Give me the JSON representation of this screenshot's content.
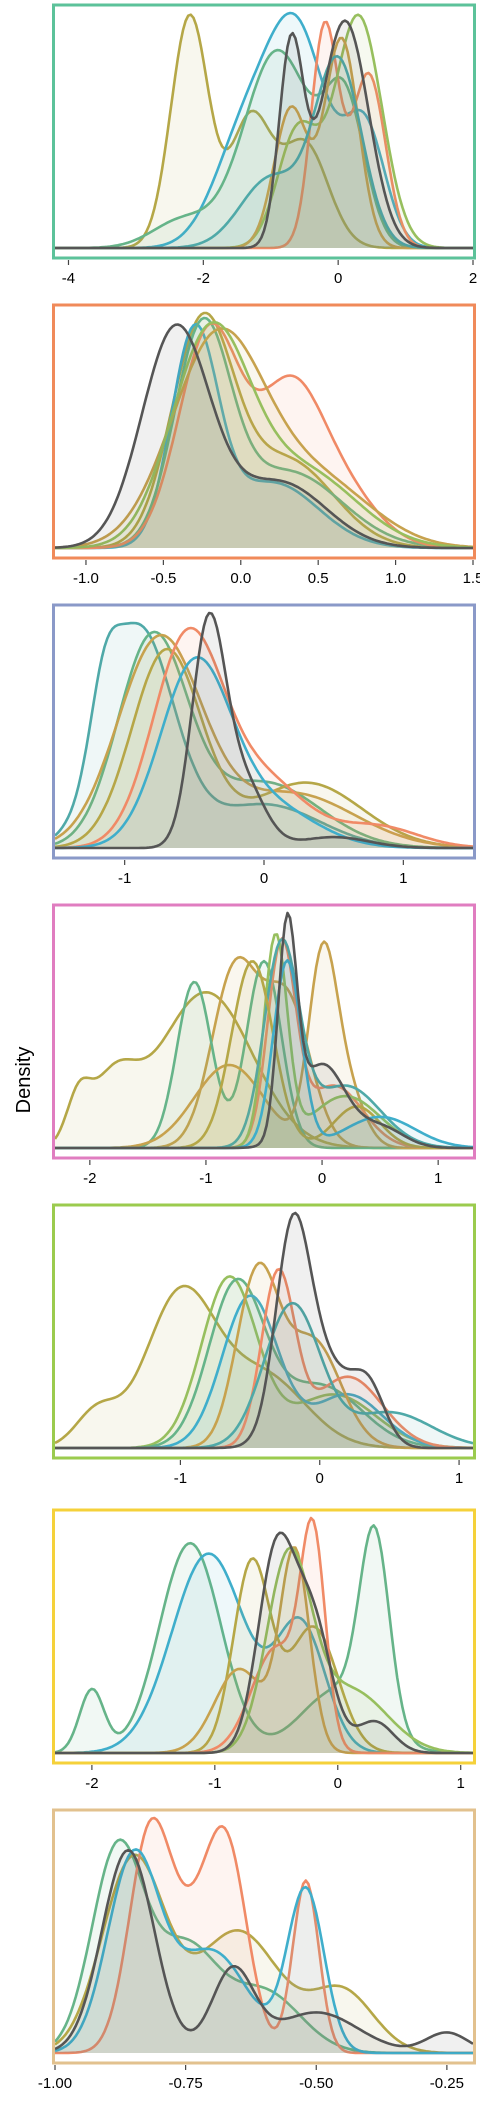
{
  "ylabel": "Density",
  "colors": {
    "dark": "#555555",
    "olive": "#B5A747",
    "green": "#66B489",
    "blue": "#3FAECB",
    "orange": "#F08A66",
    "gold": "#C7A24E",
    "lime": "#97BF5E",
    "teal": "#4FA9A8"
  },
  "chart_data": [
    {
      "type": "area",
      "frame_color": "#5CC29A",
      "xlim": [
        -4.2,
        2.0
      ],
      "xticks": [
        {
          "v": -4,
          "label": "-4"
        },
        {
          "v": -2,
          "label": "-2"
        },
        {
          "v": 0,
          "label": "0"
        },
        {
          "v": 2,
          "label": "2"
        }
      ],
      "series": [
        {
          "color": "olive",
          "comps": [
            [
              -2.2,
              0.28,
              1.0
            ],
            [
              -1.3,
              0.3,
              0.55
            ],
            [
              -0.5,
              0.35,
              0.45
            ]
          ]
        },
        {
          "color": "blue",
          "comps": [
            [
              -0.6,
              0.45,
              0.9
            ],
            [
              -1.4,
              0.45,
              0.45
            ],
            [
              0.4,
              0.3,
              0.5
            ]
          ]
        },
        {
          "color": "green",
          "comps": [
            [
              -0.9,
              0.5,
              0.85
            ],
            [
              0.1,
              0.3,
              0.6
            ],
            [
              -2.3,
              0.45,
              0.12
            ]
          ]
        },
        {
          "color": "orange",
          "comps": [
            [
              -0.2,
              0.2,
              0.95
            ],
            [
              0.45,
              0.25,
              0.75
            ]
          ]
        },
        {
          "color": "lime",
          "comps": [
            [
              0.3,
              0.35,
              1.0
            ],
            [
              -0.6,
              0.3,
              0.5
            ]
          ]
        },
        {
          "color": "gold",
          "comps": [
            [
              0.05,
              0.25,
              0.9
            ],
            [
              -0.7,
              0.25,
              0.6
            ]
          ]
        },
        {
          "color": "teal",
          "comps": [
            [
              0.0,
              0.35,
              0.8
            ],
            [
              -1.0,
              0.45,
              0.3
            ]
          ]
        },
        {
          "color": "dark",
          "comps": [
            [
              -0.7,
              0.18,
              0.85
            ],
            [
              0.1,
              0.35,
              0.98
            ]
          ]
        }
      ]
    },
    {
      "type": "area",
      "frame_color": "#F08A5A",
      "xlim": [
        -1.2,
        1.5
      ],
      "xticks": [
        {
          "v": -1.0,
          "label": "-1.0"
        },
        {
          "v": -0.5,
          "label": "-0.5"
        },
        {
          "v": 0.0,
          "label": "0.0"
        },
        {
          "v": 0.5,
          "label": "0.5"
        },
        {
          "v": 1.0,
          "label": "1.0"
        },
        {
          "v": 1.5,
          "label": "1.5"
        }
      ],
      "series": [
        {
          "color": "olive",
          "comps": [
            [
              -0.25,
              0.2,
              1.0
            ],
            [
              0.3,
              0.3,
              0.4
            ]
          ]
        },
        {
          "color": "blue",
          "comps": [
            [
              -0.3,
              0.15,
              0.95
            ],
            [
              0.2,
              0.3,
              0.3
            ]
          ]
        },
        {
          "color": "green",
          "comps": [
            [
              -0.25,
              0.18,
              0.95
            ],
            [
              0.3,
              0.35,
              0.35
            ]
          ]
        },
        {
          "color": "orange",
          "comps": [
            [
              -0.2,
              0.2,
              1.0
            ],
            [
              0.3,
              0.2,
              0.6
            ],
            [
              0.6,
              0.25,
              0.3
            ]
          ]
        },
        {
          "color": "gold",
          "comps": [
            [
              -0.15,
              0.3,
              0.95
            ],
            [
              0.5,
              0.35,
              0.3
            ]
          ]
        },
        {
          "color": "lime",
          "comps": [
            [
              -0.2,
              0.25,
              0.95
            ],
            [
              0.4,
              0.35,
              0.35
            ]
          ]
        },
        {
          "color": "dark",
          "comps": [
            [
              -0.42,
              0.22,
              1.0
            ],
            [
              0.25,
              0.3,
              0.3
            ]
          ]
        }
      ]
    },
    {
      "type": "area",
      "frame_color": "#8A99C8",
      "xlim": [
        -1.5,
        1.5
      ],
      "xticks": [
        {
          "v": -1,
          "label": "-1"
        },
        {
          "v": 0,
          "label": "0"
        },
        {
          "v": 1,
          "label": "1"
        }
      ],
      "series": [
        {
          "color": "teal",
          "comps": [
            [
              -0.9,
              0.25,
              1.0
            ],
            [
              -1.15,
              0.1,
              0.3
            ],
            [
              0.0,
              0.4,
              0.2
            ]
          ]
        },
        {
          "color": "green",
          "comps": [
            [
              -0.8,
              0.25,
              0.95
            ],
            [
              0.0,
              0.4,
              0.3
            ]
          ]
        },
        {
          "color": "olive",
          "comps": [
            [
              -0.7,
              0.25,
              0.9
            ],
            [
              0.3,
              0.4,
              0.3
            ]
          ]
        },
        {
          "color": "gold",
          "comps": [
            [
              -0.75,
              0.3,
              0.95
            ],
            [
              0.2,
              0.45,
              0.25
            ]
          ]
        },
        {
          "color": "orange",
          "comps": [
            [
              -0.55,
              0.25,
              0.95
            ],
            [
              0.0,
              0.3,
              0.3
            ],
            [
              0.8,
              0.3,
              0.1
            ]
          ]
        },
        {
          "color": "blue",
          "comps": [
            [
              -0.5,
              0.25,
              0.8
            ],
            [
              0.0,
              0.35,
              0.2
            ]
          ]
        },
        {
          "color": "dark",
          "comps": [
            [
              -0.4,
              0.12,
              1.0
            ],
            [
              -0.15,
              0.15,
              0.3
            ],
            [
              0.5,
              0.25,
              0.05
            ]
          ]
        }
      ]
    },
    {
      "type": "area",
      "frame_color": "#E07DC0",
      "xlim": [
        -2.3,
        1.3
      ],
      "xticks": [
        {
          "v": -2,
          "label": "-2"
        },
        {
          "v": -1,
          "label": "-1"
        },
        {
          "v": 0,
          "label": "0"
        },
        {
          "v": 1,
          "label": "1"
        }
      ],
      "series": [
        {
          "color": "olive",
          "comps": [
            [
              -1.0,
              0.4,
              0.75
            ],
            [
              -1.8,
              0.2,
              0.3
            ],
            [
              -2.1,
              0.1,
              0.2
            ]
          ]
        },
        {
          "color": "gold",
          "comps": [
            [
              -0.75,
              0.2,
              0.85
            ],
            [
              -0.3,
              0.2,
              0.7
            ]
          ]
        },
        {
          "color": "green",
          "comps": [
            [
              -0.5,
              0.15,
              0.9
            ],
            [
              -1.1,
              0.15,
              0.8
            ]
          ]
        },
        {
          "color": "gold",
          "comps": [
            [
              0.0,
              0.12,
              0.85
            ],
            [
              0.2,
              0.15,
              0.3
            ],
            [
              -0.8,
              0.3,
              0.4
            ]
          ]
        },
        {
          "color": "orange",
          "comps": [
            [
              -0.35,
              0.12,
              0.95
            ],
            [
              0.1,
              0.25,
              0.3
            ]
          ]
        },
        {
          "color": "lime",
          "comps": [
            [
              -0.4,
              0.1,
              1.0
            ],
            [
              0.2,
              0.3,
              0.25
            ]
          ]
        },
        {
          "color": "teal",
          "comps": [
            [
              -0.35,
              0.15,
              0.95
            ],
            [
              0.2,
              0.3,
              0.3
            ]
          ]
        },
        {
          "color": "olive",
          "comps": [
            [
              -0.6,
              0.18,
              0.9
            ],
            [
              0.3,
              0.2,
              0.2
            ]
          ]
        },
        {
          "color": "blue",
          "comps": [
            [
              -0.3,
              0.12,
              0.9
            ],
            [
              0.5,
              0.3,
              0.15
            ]
          ]
        },
        {
          "color": "dark",
          "comps": [
            [
              -0.3,
              0.08,
              1.0
            ],
            [
              0.0,
              0.2,
              0.4
            ],
            [
              0.5,
              0.2,
              0.1
            ]
          ]
        }
      ]
    },
    {
      "type": "area",
      "frame_color": "#9BCB4E",
      "xlim": [
        -1.9,
        1.1
      ],
      "xticks": [
        {
          "v": -1,
          "label": "-1"
        },
        {
          "v": 0,
          "label": "0"
        },
        {
          "v": 1,
          "label": "1"
        }
      ],
      "series": [
        {
          "color": "olive",
          "comps": [
            [
              -1.0,
              0.25,
              0.85
            ],
            [
              -1.6,
              0.15,
              0.2
            ],
            [
              -0.4,
              0.3,
              0.4
            ]
          ]
        },
        {
          "color": "lime",
          "comps": [
            [
              -0.65,
              0.2,
              0.95
            ],
            [
              0.1,
              0.3,
              0.3
            ]
          ]
        },
        {
          "color": "green",
          "comps": [
            [
              -0.6,
              0.2,
              0.9
            ],
            [
              0.0,
              0.3,
              0.35
            ]
          ]
        },
        {
          "color": "blue",
          "comps": [
            [
              -0.5,
              0.2,
              0.85
            ],
            [
              0.2,
              0.25,
              0.3
            ]
          ]
        },
        {
          "color": "gold",
          "comps": [
            [
              -0.45,
              0.15,
              0.95
            ],
            [
              -0.05,
              0.2,
              0.6
            ]
          ]
        },
        {
          "color": "orange",
          "comps": [
            [
              -0.3,
              0.12,
              0.95
            ],
            [
              0.2,
              0.25,
              0.4
            ]
          ]
        },
        {
          "color": "teal",
          "comps": [
            [
              -0.2,
              0.2,
              0.8
            ],
            [
              0.5,
              0.3,
              0.2
            ]
          ]
        },
        {
          "color": "dark",
          "comps": [
            [
              -0.2,
              0.12,
              1.0
            ],
            [
              0.0,
              0.2,
              0.5
            ],
            [
              0.35,
              0.12,
              0.3
            ]
          ]
        }
      ]
    },
    {
      "type": "area",
      "frame_color": "#F5D13A",
      "xlim": [
        -2.3,
        1.1
      ],
      "xticks": [
        {
          "v": -2,
          "label": "-2"
        },
        {
          "v": -1,
          "label": "-1"
        },
        {
          "v": 0,
          "label": "0"
        },
        {
          "v": 1,
          "label": "1"
        }
      ],
      "series": [
        {
          "color": "green",
          "comps": [
            [
              -1.2,
              0.25,
              1.0
            ],
            [
              -2.0,
              0.1,
              0.3
            ],
            [
              0.3,
              0.12,
              0.9
            ],
            [
              0.0,
              0.3,
              0.3
            ]
          ]
        },
        {
          "color": "blue",
          "comps": [
            [
              -1.05,
              0.3,
              0.95
            ],
            [
              -0.3,
              0.2,
              0.6
            ]
          ]
        },
        {
          "color": "olive",
          "comps": [
            [
              -0.7,
              0.15,
              0.9
            ],
            [
              -0.2,
              0.2,
              0.6
            ]
          ]
        },
        {
          "color": "gold",
          "comps": [
            [
              -0.35,
              0.12,
              0.95
            ],
            [
              -0.8,
              0.2,
              0.4
            ]
          ]
        },
        {
          "color": "orange",
          "comps": [
            [
              -0.2,
              0.1,
              0.95
            ],
            [
              -0.5,
              0.2,
              0.5
            ]
          ]
        },
        {
          "color": "lime",
          "comps": [
            [
              -0.4,
              0.18,
              0.9
            ],
            [
              0.1,
              0.3,
              0.3
            ]
          ]
        },
        {
          "color": "dark",
          "comps": [
            [
              -0.5,
              0.15,
              0.95
            ],
            [
              -0.2,
              0.15,
              0.6
            ],
            [
              0.3,
              0.15,
              0.15
            ]
          ]
        }
      ]
    },
    {
      "type": "area",
      "frame_color": "#E2C18E",
      "xlim": [
        -1.0,
        -0.2
      ],
      "xticks": [
        {
          "v": -1.0,
          "label": "-1.00"
        },
        {
          "v": -0.75,
          "label": "-0.75"
        },
        {
          "v": -0.5,
          "label": "-0.50"
        },
        {
          "v": -0.25,
          "label": "-0.25"
        }
      ],
      "series": [
        {
          "color": "green",
          "comps": [
            [
              -0.88,
              0.05,
              1.0
            ],
            [
              -0.75,
              0.06,
              0.5
            ],
            [
              -0.6,
              0.07,
              0.3
            ]
          ]
        },
        {
          "color": "olive",
          "comps": [
            [
              -0.85,
              0.06,
              0.95
            ],
            [
              -0.65,
              0.08,
              0.6
            ],
            [
              -0.45,
              0.06,
              0.3
            ]
          ]
        },
        {
          "color": "orange",
          "comps": [
            [
              -0.82,
              0.04,
              1.0
            ],
            [
              -0.67,
              0.04,
              0.9
            ],
            [
              -0.52,
              0.025,
              0.85
            ],
            [
              -0.74,
              0.05,
              0.5
            ]
          ]
        },
        {
          "color": "blue",
          "comps": [
            [
              -0.85,
              0.05,
              0.95
            ],
            [
              -0.52,
              0.035,
              0.8
            ],
            [
              -0.7,
              0.07,
              0.5
            ]
          ]
        },
        {
          "color": "dark",
          "comps": [
            [
              -0.86,
              0.05,
              1.0
            ],
            [
              -0.66,
              0.04,
              0.4
            ],
            [
              -0.5,
              0.08,
              0.2
            ],
            [
              -0.25,
              0.04,
              0.1
            ]
          ]
        }
      ]
    }
  ]
}
